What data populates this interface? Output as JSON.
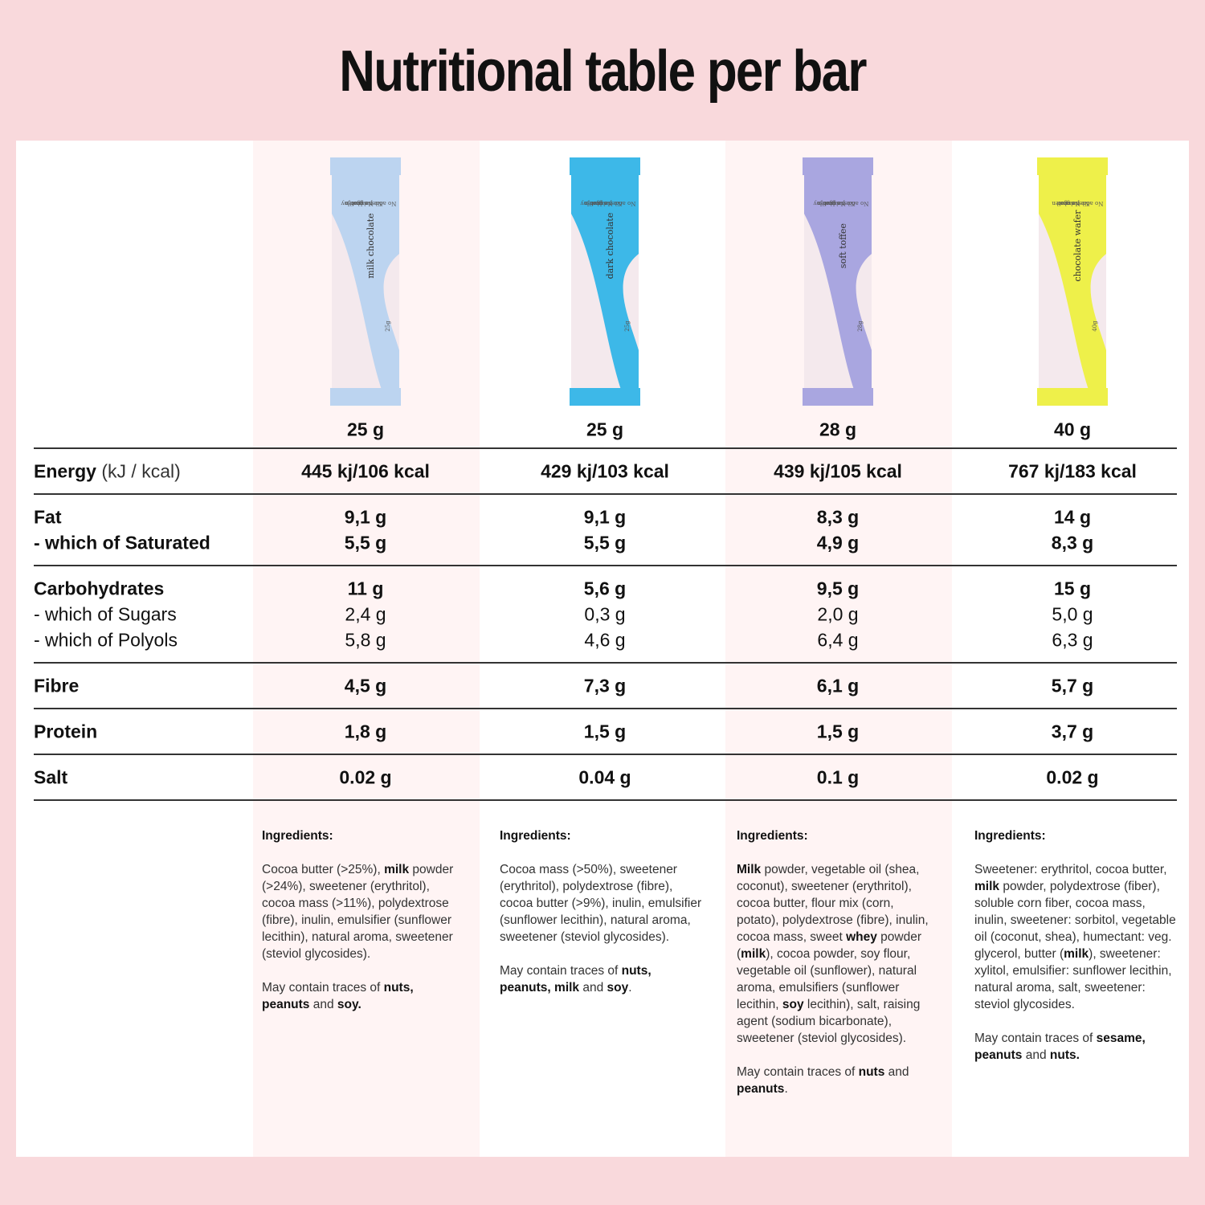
{
  "title": "Nutritional table per bar",
  "products": [
    {
      "brand": "N!CK'S",
      "flavor": "milk chocolate",
      "claims": [
        "No added sugar",
        "No palm oil",
        "No gluten",
        "Just Joy"
      ],
      "pack_weight": "25g",
      "color": "#bcd4f0",
      "weight": "25 g",
      "ingredients_heading": "Ingredients:",
      "ingredients": [
        {
          "text": "Cocoa butter (>25%), ",
          "bold": false
        },
        {
          "text": "milk",
          "bold": true
        },
        {
          "text": " powder (>24%), sweetener (erythritol), cocoa mass (>11%), polydextrose (fibre), inulin, emulsifier (sunflower lecithin), natural aroma, sweetener (steviol glycosides).",
          "bold": false
        }
      ],
      "allergens": [
        {
          "text": "May contain traces of ",
          "bold": false
        },
        {
          "text": "nuts, peanuts",
          "bold": true
        },
        {
          "text": " and ",
          "bold": false
        },
        {
          "text": "soy.",
          "bold": true
        }
      ]
    },
    {
      "brand": "N!CK'S",
      "flavor": "dark chocolate",
      "claims": [
        "No added sugar",
        "No palm oil",
        "No gluten",
        "Just Joy"
      ],
      "pack_weight": "25g",
      "color": "#3db8e8",
      "weight": "25 g",
      "ingredients_heading": "Ingredients:",
      "ingredients": [
        {
          "text": "Cocoa mass (>50%), sweetener (erythritol), polydextrose (fibre), cocoa butter (>9%), inulin, emulsifier (sunflower lecithin), natural aroma, sweetener (steviol glycosides).",
          "bold": false
        }
      ],
      "allergens": [
        {
          "text": "May contain traces of ",
          "bold": false
        },
        {
          "text": "nuts, peanuts, milk",
          "bold": true
        },
        {
          "text": " and ",
          "bold": false
        },
        {
          "text": "soy",
          "bold": true
        },
        {
          "text": ".",
          "bold": false
        }
      ]
    },
    {
      "brand": "N!CK'S",
      "flavor": "soft toffee",
      "claims": [
        "No added sugar",
        "No palm oil",
        "No gluten",
        "Just Joy"
      ],
      "pack_weight": "28g",
      "color": "#a9a6e0",
      "weight": "28 g",
      "ingredients_heading": "Ingredients:",
      "ingredients": [
        {
          "text": "Milk",
          "bold": true
        },
        {
          "text": " powder, vegetable oil (shea, coconut), sweetener (erythritol), cocoa butter, flour mix (corn, potato), polydextrose (fibre), inulin, cocoa mass, sweet ",
          "bold": false
        },
        {
          "text": "whey",
          "bold": true
        },
        {
          "text": " powder (",
          "bold": false
        },
        {
          "text": "milk",
          "bold": true
        },
        {
          "text": "), cocoa powder, soy flour, vegetable oil (sunflower), natural aroma, emulsifiers (sunflower lecithin, ",
          "bold": false
        },
        {
          "text": "soy",
          "bold": true
        },
        {
          "text": " lecithin), salt, raising agent (sodium bicarbonate), sweetener (steviol glycosides).",
          "bold": false
        }
      ],
      "allergens": [
        {
          "text": "May contain traces of ",
          "bold": false
        },
        {
          "text": "nuts",
          "bold": true
        },
        {
          "text": " and ",
          "bold": false
        },
        {
          "text": "peanuts",
          "bold": true
        },
        {
          "text": ".",
          "bold": false
        }
      ]
    },
    {
      "brand": "N!CK'S",
      "flavor": "chocolate wafer",
      "claims": [
        "No added sugar",
        "No palm oil",
        "No gluten"
      ],
      "pack_weight": "40g",
      "color": "#eef04a",
      "weight": "40 g",
      "ingredients_heading": "Ingredients:",
      "ingredients": [
        {
          "text": "Sweetener: erythritol, cocoa butter, ",
          "bold": false
        },
        {
          "text": "milk",
          "bold": true
        },
        {
          "text": " powder, polydextrose (fiber), soluble corn fiber, cocoa mass, inulin, sweetener: sorbitol, vegetable oil (coconut, shea), humectant: veg. glycerol, butter (",
          "bold": false
        },
        {
          "text": "milk",
          "bold": true
        },
        {
          "text": "), sweetener: xylitol, emulsifier: sunflower lecithin, natural aroma, salt, sweetener: steviol glycosides.",
          "bold": false
        }
      ],
      "allergens": [
        {
          "text": "May contain traces of ",
          "bold": false
        },
        {
          "text": "sesame, peanuts",
          "bold": true
        },
        {
          "text": " and ",
          "bold": false
        },
        {
          "text": "nuts.",
          "bold": true
        }
      ]
    }
  ],
  "table": {
    "groups": [
      [
        {
          "label": "Energy",
          "note": " (kJ / kcal)",
          "bold": true,
          "values": [
            "445 kj/106 kcal",
            "429 kj/103 kcal",
            "439 kj/105 kcal",
            "767 kj/183 kcal"
          ]
        }
      ],
      [
        {
          "label": "Fat",
          "bold": true,
          "values": [
            "9,1 g",
            "9,1 g",
            "8,3 g",
            "14 g"
          ]
        },
        {
          "label": "- which of Saturated",
          "bold": true,
          "values": [
            "5,5 g",
            "5,5 g",
            "4,9 g",
            "8,3 g"
          ]
        }
      ],
      [
        {
          "label": "Carbohydrates",
          "bold": true,
          "values": [
            "11 g",
            "5,6 g",
            "9,5 g",
            "15 g"
          ]
        },
        {
          "label": "- which of Sugars",
          "bold": false,
          "values": [
            "2,4 g",
            "0,3 g",
            "2,0 g",
            "5,0 g"
          ]
        },
        {
          "label": "- which of Polyols",
          "bold": false,
          "values": [
            "5,8 g",
            "4,6 g",
            "6,4 g",
            "6,3 g"
          ]
        }
      ],
      [
        {
          "label": "Fibre",
          "bold": true,
          "values": [
            "4,5 g",
            "7,3 g",
            "6,1 g",
            "5,7 g"
          ]
        }
      ],
      [
        {
          "label": "Protein",
          "bold": true,
          "values": [
            "1,8 g",
            "1,5 g",
            "1,5 g",
            "3,7 g"
          ]
        }
      ],
      [
        {
          "label": "Salt",
          "bold": true,
          "values": [
            "0.02 g",
            "0.04 g",
            "0.1 g",
            "0.02 g"
          ]
        }
      ]
    ]
  }
}
